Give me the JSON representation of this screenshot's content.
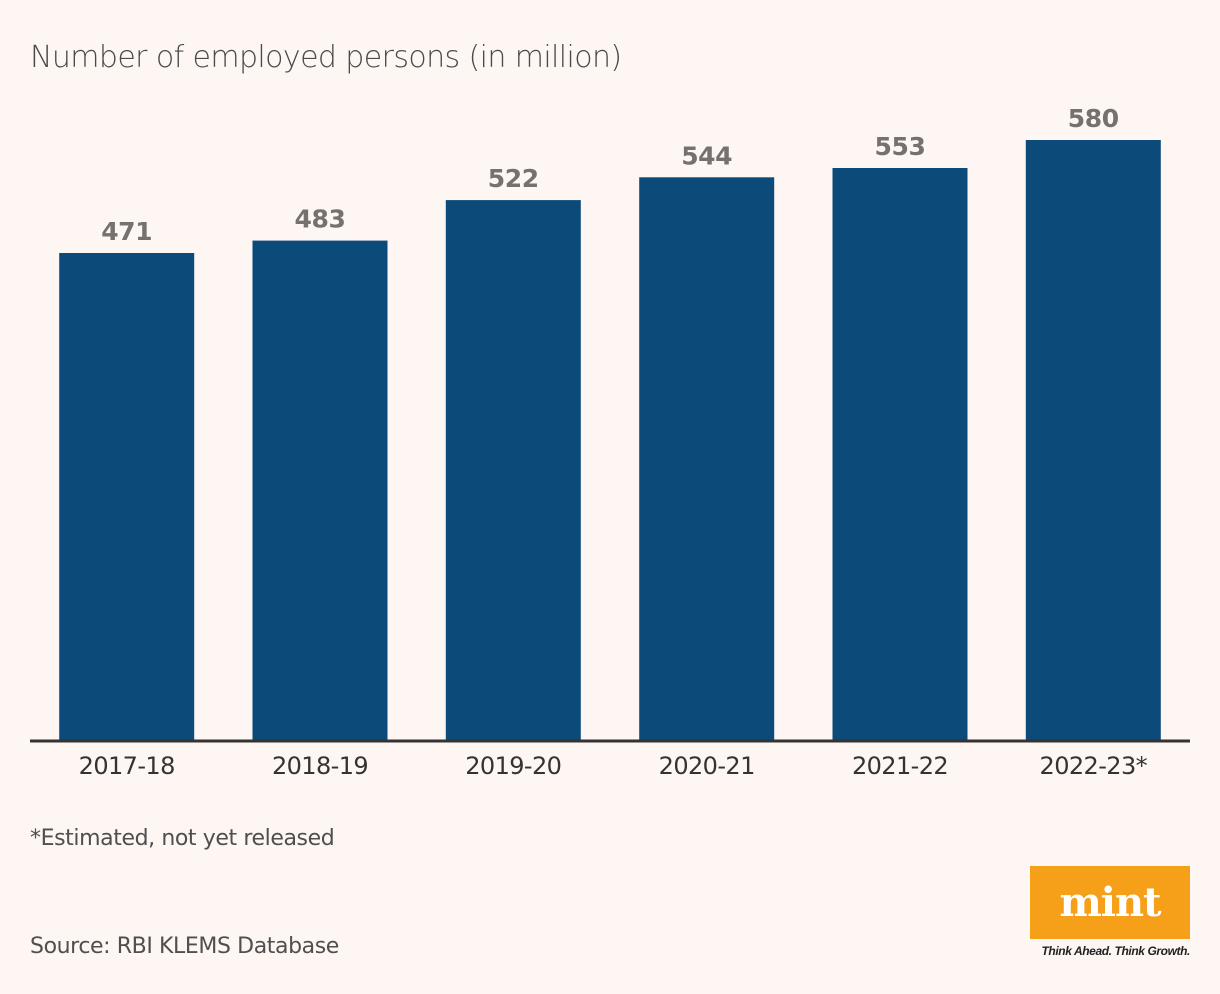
{
  "header": {
    "title": "Number of employed persons (in million)"
  },
  "chart_data": {
    "type": "bar",
    "title": "Number of employed persons (in million)",
    "categories": [
      "2017-18",
      "2018-19",
      "2019-20",
      "2020-21",
      "2021-22",
      "2022-23*"
    ],
    "values": [
      471,
      483,
      522,
      544,
      553,
      580
    ],
    "xlabel": "",
    "ylabel": "",
    "ylim": [
      0,
      600
    ],
    "grid": false,
    "bar_color": "#0c4a79",
    "value_label_color": "#767170",
    "axis_color": "#333333"
  },
  "footer": {
    "note": "*Estimated, not yet released",
    "source": "Source: RBI KLEMS Database"
  },
  "branding": {
    "logo_text": "mint",
    "tagline": "Think Ahead. Think Growth.",
    "logo_color": "#f6a01a"
  }
}
